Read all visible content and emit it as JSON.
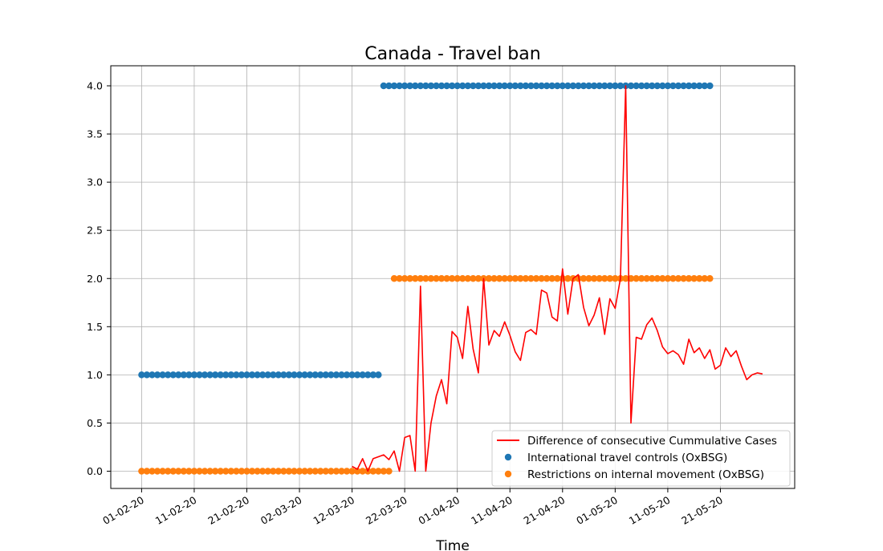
{
  "chart_data": {
    "type": "line",
    "title": "Canada - Travel ban",
    "xlabel": "Time",
    "ylabel": "",
    "x_start": "2020-02-01",
    "x_tick_labels": [
      "01-02-20",
      "11-02-20",
      "21-02-20",
      "02-03-20",
      "12-03-20",
      "22-03-20",
      "01-04-20",
      "11-04-20",
      "21-04-20",
      "01-05-20",
      "11-05-20",
      "21-05-20"
    ],
    "ylim": [
      -0.15,
      4.2
    ],
    "y_ticks": [
      0.0,
      0.5,
      1.0,
      1.5,
      2.0,
      2.5,
      3.0,
      3.5,
      4.0
    ],
    "y_tick_labels": [
      "0.0",
      "0.5",
      "1.0",
      "1.5",
      "2.0",
      "2.5",
      "3.0",
      "3.5",
      "4.0"
    ],
    "grid": true,
    "legend_position": "lower-right",
    "series": [
      {
        "name": "Difference of consecutive Cummulative Cases",
        "style": "line",
        "color": "#ff0000",
        "start_date": "2020-03-12",
        "values": [
          0.05,
          0.02,
          0.13,
          0.0,
          0.13,
          0.15,
          0.17,
          0.12,
          0.21,
          0.0,
          0.35,
          0.37,
          0.0,
          1.92,
          0.0,
          0.5,
          0.78,
          0.95,
          0.7,
          1.45,
          1.39,
          1.17,
          1.71,
          1.27,
          1.02,
          2.0,
          1.31,
          1.46,
          1.4,
          1.55,
          1.41,
          1.24,
          1.15,
          1.44,
          1.47,
          1.42,
          1.88,
          1.85,
          1.6,
          1.56,
          2.1,
          1.63,
          2.0,
          2.04,
          1.7,
          1.51,
          1.62,
          1.8,
          1.42,
          1.79,
          1.69,
          2.0,
          4.0,
          0.5,
          1.39,
          1.37,
          1.52,
          1.59,
          1.46,
          1.29,
          1.22,
          1.25,
          1.21,
          1.11,
          1.37,
          1.23,
          1.28,
          1.17,
          1.26,
          1.06,
          1.1,
          1.28,
          1.19,
          1.25,
          1.09,
          0.95,
          1.0,
          1.02,
          1.01
        ]
      },
      {
        "name": "International travel controls (OxBSG)",
        "style": "markers",
        "color": "#1f77b4",
        "segments": [
          {
            "from": "2020-02-01",
            "to": "2020-03-17",
            "value": 1.0
          },
          {
            "from": "2020-03-18",
            "to": "2020-05-19",
            "value": 4.0
          }
        ]
      },
      {
        "name": "Restrictions on internal movement (OxBSG)",
        "style": "markers",
        "color": "#ff7f0e",
        "segments": [
          {
            "from": "2020-02-01",
            "to": "2020-03-19",
            "value": 0.0
          },
          {
            "from": "2020-03-20",
            "to": "2020-05-19",
            "value": 2.0
          }
        ]
      }
    ]
  }
}
